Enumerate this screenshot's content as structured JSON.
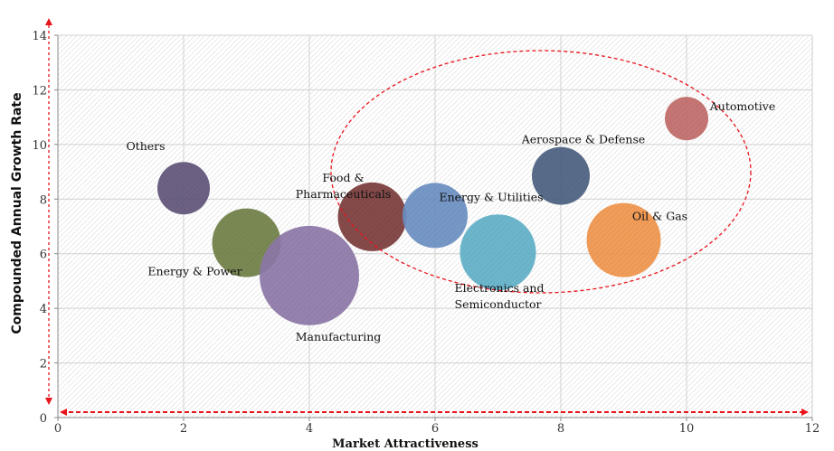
{
  "chart_data": {
    "type": "scatter",
    "subtype": "bubble",
    "title": "",
    "xlabel": "Market Attractiveness",
    "ylabel": "Compounded Annual Growth Rate",
    "xlim": [
      0,
      12
    ],
    "ylim": [
      0,
      14
    ],
    "xticks": [
      "0",
      "2",
      "4",
      "6",
      "8",
      "10",
      "12"
    ],
    "yticks": [
      "0",
      "2",
      "4",
      "6",
      "8",
      "10",
      "12",
      "14"
    ],
    "grid": true,
    "series": [
      {
        "name": "Others",
        "lines": [
          "Others"
        ],
        "x": 2,
        "y": 8.4,
        "size": 29,
        "color": "#5f5478"
      },
      {
        "name": "Energy & Power",
        "lines": [
          "Energy & Power"
        ],
        "x": 3,
        "y": 6.4,
        "size": 38,
        "color": "#6f7f45"
      },
      {
        "name": "Manufacturing",
        "lines": [
          "Manufacturing"
        ],
        "x": 4,
        "y": 5.2,
        "size": 55,
        "color": "#8d77a8"
      },
      {
        "name": "Food & Pharmaceuticals",
        "lines": [
          "Food &",
          "Pharmaceuticals"
        ],
        "x": 5,
        "y": 7.35,
        "size": 38,
        "color": "#7b3b3b"
      },
      {
        "name": "Energy & Utilities",
        "lines": [
          "Energy & Utilities"
        ],
        "x": 6,
        "y": 7.4,
        "size": 36,
        "color": "#6a8fc2"
      },
      {
        "name": "Electronics and Semiconductor",
        "lines": [
          "Electronics and",
          "Semiconductor"
        ],
        "x": 7,
        "y": 6.05,
        "size": 42,
        "color": "#5fb0c8"
      },
      {
        "name": "Aerospace & Defense",
        "lines": [
          "Aerospace & Defense"
        ],
        "x": 8,
        "y": 8.85,
        "size": 32,
        "color": "#4a5f80"
      },
      {
        "name": "Oil & Gas",
        "lines": [
          "Oil & Gas"
        ],
        "x": 9,
        "y": 6.5,
        "size": 41,
        "color": "#f0944a"
      },
      {
        "name": "Automotive",
        "lines": [
          "Automotive"
        ],
        "x": 10,
        "y": 10.95,
        "size": 24,
        "color": "#c06a68"
      }
    ],
    "annotation_color": "#e8141c"
  }
}
